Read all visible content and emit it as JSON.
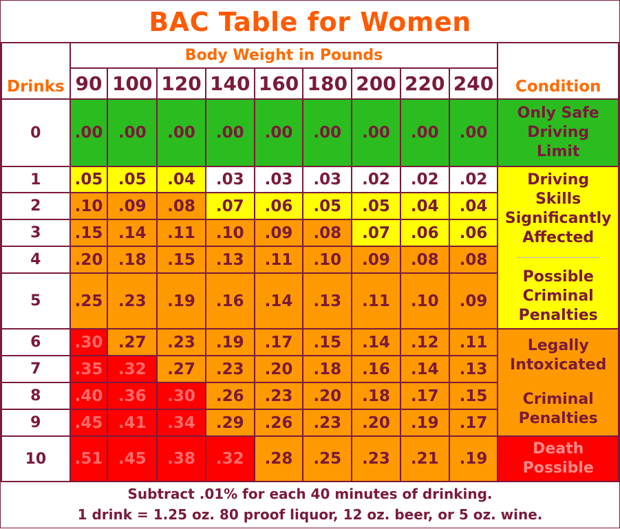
{
  "title": "BAC Table for Women",
  "header": {
    "weight_title": "Body Weight in Pounds",
    "drinks_label": "Drinks",
    "condition_label": "Condition",
    "weights": [
      "90",
      "100",
      "120",
      "140",
      "160",
      "180",
      "200",
      "220",
      "240"
    ]
  },
  "rows": [
    {
      "drinks": "0",
      "values": [
        ".00",
        ".00",
        ".00",
        ".00",
        ".00",
        ".00",
        ".00",
        ".00",
        ".00"
      ]
    },
    {
      "drinks": "1",
      "values": [
        ".05",
        ".05",
        ".04",
        ".03",
        ".03",
        ".03",
        ".02",
        ".02",
        ".02"
      ]
    },
    {
      "drinks": "2",
      "values": [
        ".10",
        ".09",
        ".08",
        ".07",
        ".06",
        ".05",
        ".05",
        ".04",
        ".04"
      ]
    },
    {
      "drinks": "3",
      "values": [
        ".15",
        ".14",
        ".11",
        ".10",
        ".09",
        ".08",
        ".07",
        ".06",
        ".06"
      ]
    },
    {
      "drinks": "4",
      "values": [
        ".20",
        ".18",
        ".15",
        ".13",
        ".11",
        ".10",
        ".09",
        ".08",
        ".08"
      ]
    },
    {
      "drinks": "5",
      "values": [
        ".25",
        ".23",
        ".19",
        ".16",
        ".14",
        ".13",
        ".11",
        ".10",
        ".09"
      ]
    },
    {
      "drinks": "6",
      "values": [
        ".30",
        ".27",
        ".23",
        ".19",
        ".17",
        ".15",
        ".14",
        ".12",
        ".11"
      ]
    },
    {
      "drinks": "7",
      "values": [
        ".35",
        ".32",
        ".27",
        ".23",
        ".20",
        ".18",
        ".16",
        ".14",
        ".13"
      ]
    },
    {
      "drinks": "8",
      "values": [
        ".40",
        ".36",
        ".30",
        ".26",
        ".23",
        ".20",
        ".18",
        ".17",
        ".15"
      ]
    },
    {
      "drinks": "9",
      "values": [
        ".45",
        ".41",
        ".34",
        ".29",
        ".26",
        ".23",
        ".20",
        ".19",
        ".17"
      ]
    },
    {
      "drinks": "10",
      "values": [
        ".51",
        ".45",
        ".38",
        ".32",
        ".28",
        ".25",
        ".23",
        ".21",
        ".19"
      ]
    }
  ],
  "conditions": {
    "safe": [
      "Only Safe",
      "Driving",
      "Limit"
    ],
    "impaired": [
      "Driving",
      "Skills",
      "Significantly",
      "Affected"
    ],
    "possible": [
      "Possible",
      "Criminal",
      "Penalties"
    ],
    "intoxicated": [
      "Legally",
      "Intoxicated"
    ],
    "criminal": [
      "Criminal",
      "Penalties"
    ],
    "death": [
      "Death",
      "Possible"
    ]
  },
  "footer": {
    "line1": "Subtract .01% for each 40 minutes of drinking.",
    "line2": "1 drink = 1.25 oz. 80 proof liquor, 12 oz. beer, or 5 oz. wine."
  },
  "colors": {
    "green": "#2bbd1f",
    "yellow": "#ffff00",
    "orange": "#ff9900",
    "red": "#ff0000",
    "white": "#ffffff",
    "text": "#7a1a3a",
    "title": "#ff5a00"
  }
}
